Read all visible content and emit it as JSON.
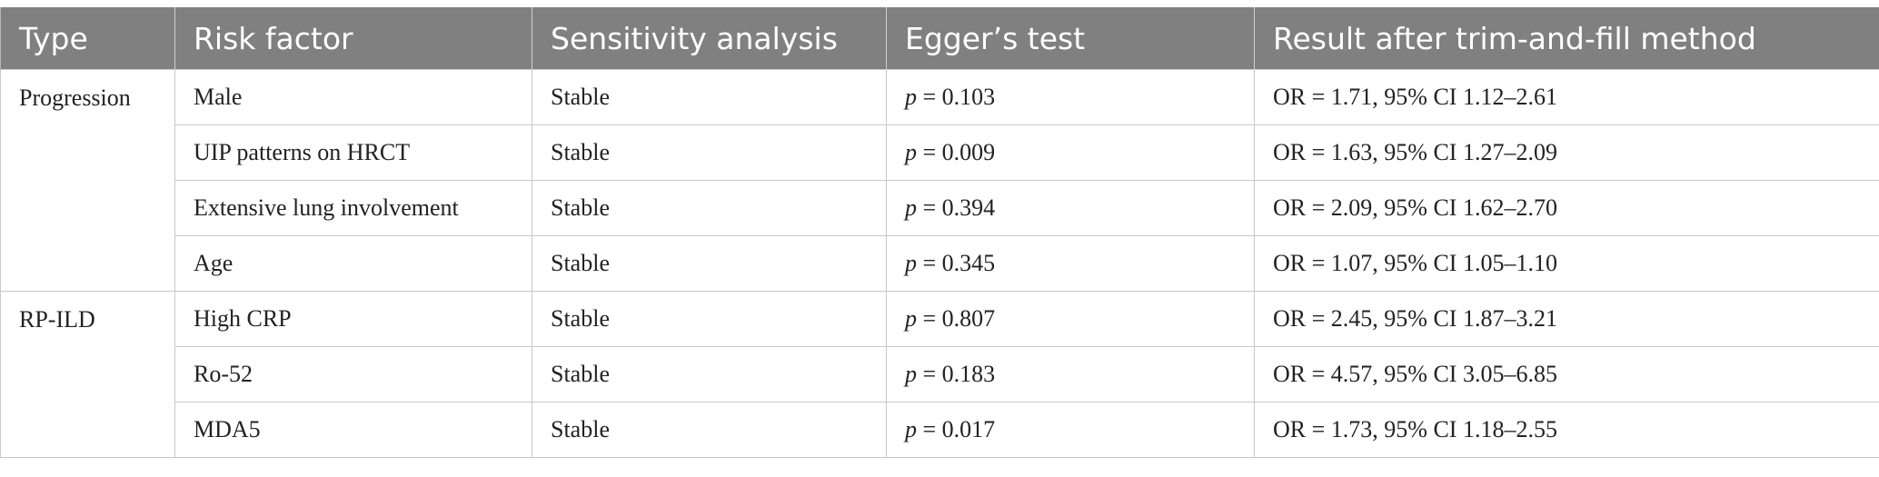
{
  "table": {
    "headers": [
      "Type",
      "Risk factor",
      "Sensitivity analysis",
      "Egger’s test",
      "Result after trim-and-fill method"
    ],
    "groups": [
      {
        "type": "Progression",
        "rows": [
          {
            "risk_factor": "Male",
            "sensitivity": "Stable",
            "p_symbol": "p",
            "p_value": " = 0.103",
            "result": "OR = 1.71, 95% CI 1.12–2.61"
          },
          {
            "risk_factor": "UIP patterns on HRCT",
            "sensitivity": "Stable",
            "p_symbol": "p",
            "p_value": " = 0.009",
            "result": "OR = 1.63, 95% CI 1.27–2.09"
          },
          {
            "risk_factor": "Extensive lung involvement",
            "sensitivity": "Stable",
            "p_symbol": "p",
            "p_value": " = 0.394",
            "result": "OR = 2.09, 95% CI 1.62–2.70"
          },
          {
            "risk_factor": "Age",
            "sensitivity": "Stable",
            "p_symbol": "p",
            "p_value": " = 0.345",
            "result": "OR = 1.07, 95% CI 1.05–1.10"
          }
        ]
      },
      {
        "type": "RP-ILD",
        "rows": [
          {
            "risk_factor": "High CRP",
            "sensitivity": "Stable",
            "p_symbol": "p",
            "p_value": " = 0.807",
            "result": "OR = 2.45, 95% CI 1.87–3.21"
          },
          {
            "risk_factor": "Ro-52",
            "sensitivity": "Stable",
            "p_symbol": "p",
            "p_value": " = 0.183",
            "result": "OR = 4.57, 95% CI 3.05–6.85"
          },
          {
            "risk_factor": "MDA5",
            "sensitivity": "Stable",
            "p_symbol": "p",
            "p_value": " = 0.017",
            "result": "OR = 1.73, 95% CI 1.18–2.55"
          }
        ]
      }
    ]
  },
  "colors": {
    "header_background": "#808080",
    "header_text": "#ffffff",
    "border": "#c8c8c8",
    "body_text": "#222222"
  }
}
